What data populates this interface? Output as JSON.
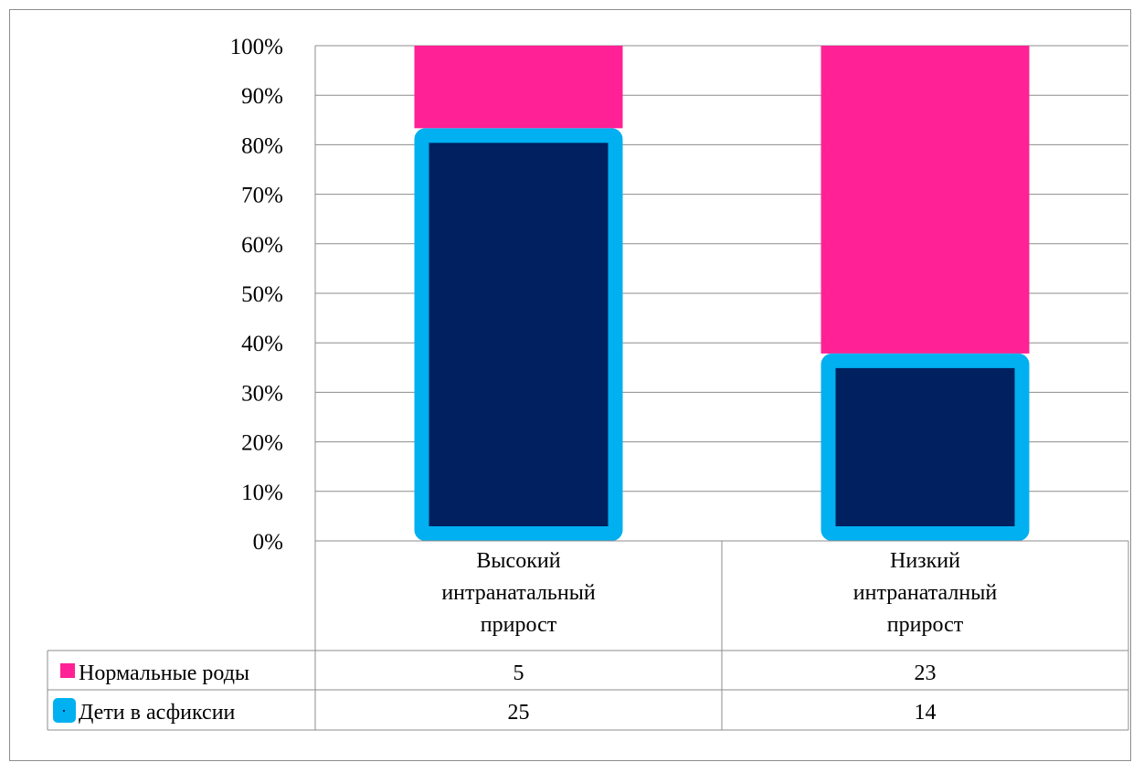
{
  "chart_data": {
    "type": "bar",
    "stacked": "percent",
    "title": "",
    "xlabel": "",
    "ylabel": "",
    "ylim": [
      0,
      100
    ],
    "yticks": [
      "0%",
      "10%",
      "20%",
      "30%",
      "40%",
      "50%",
      "60%",
      "70%",
      "80%",
      "90%",
      "100%"
    ],
    "categories": [
      [
        "Высокий",
        "интранатальный",
        "прирост"
      ],
      [
        "Низкий",
        "интранаталный",
        "прирост"
      ]
    ],
    "series": [
      {
        "name": "Дети в асфиксии",
        "values": [
          25,
          14
        ],
        "color": "#002060",
        "border_color": "#00B0F0"
      },
      {
        "name": "Нормальные роды",
        "values": [
          5,
          23
        ],
        "color": "#FF2195"
      }
    ],
    "data_table": true,
    "grid": true
  }
}
